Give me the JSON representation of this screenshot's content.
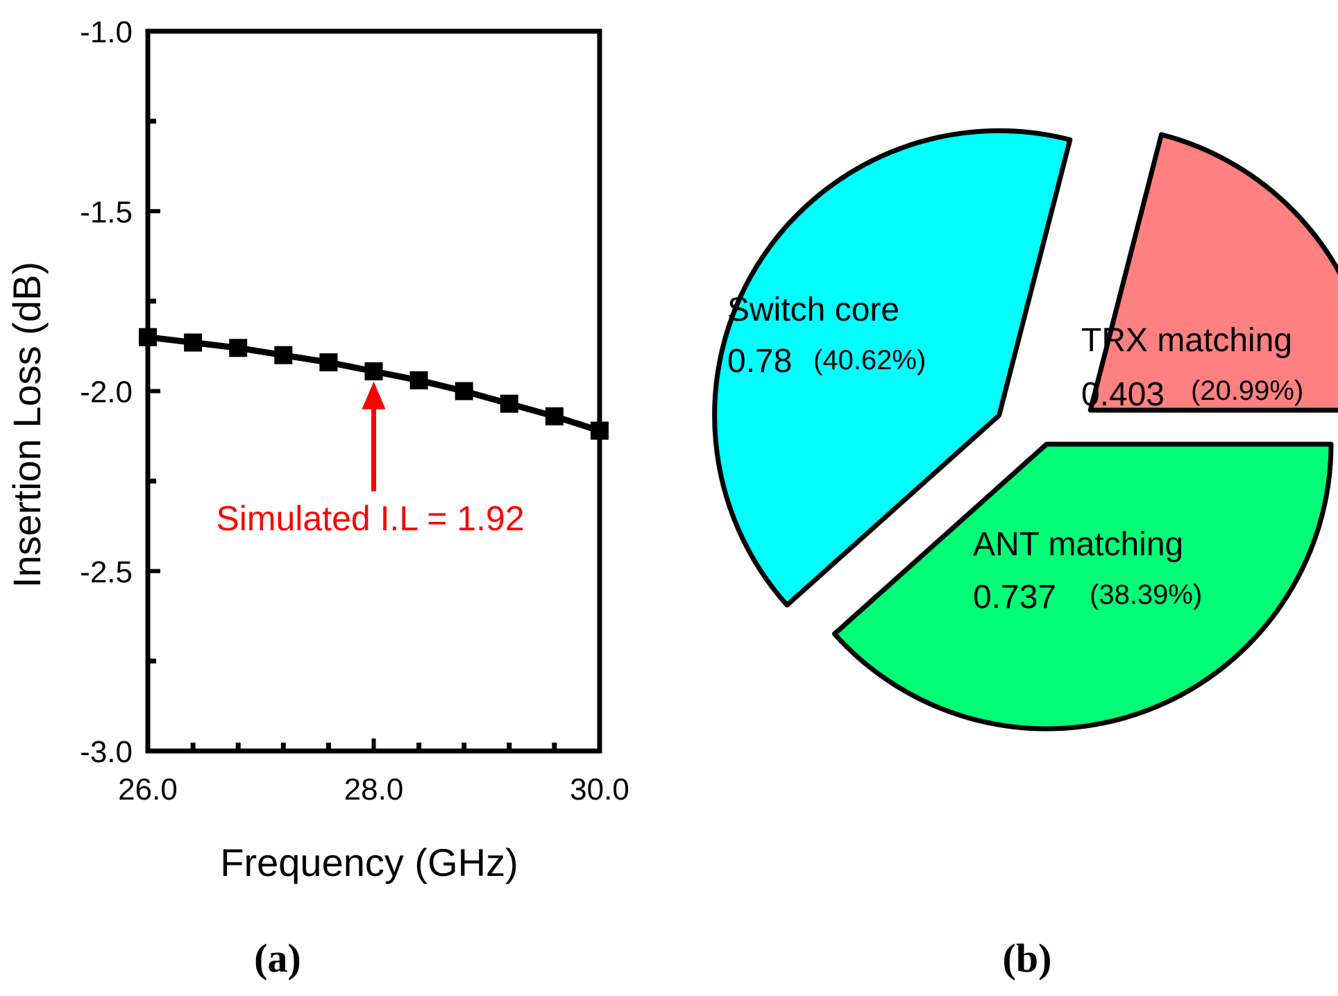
{
  "chart_data": [
    {
      "type": "line",
      "panel_label": "(a)",
      "xlabel": "Frequency (GHz)",
      "ylabel": "Insertion Loss (dB)",
      "xlim": [
        26.0,
        30.0
      ],
      "ylim": [
        -3.0,
        -1.0
      ],
      "x_ticks": [
        26.0,
        28.0,
        30.0
      ],
      "x_tick_labels": [
        "26.0",
        "28.0",
        "30.0"
      ],
      "y_ticks": [
        -1.0,
        -1.5,
        -2.0,
        -2.5,
        -3.0
      ],
      "y_tick_labels": [
        "-1.0",
        "-1.5",
        "-2.0",
        "-2.5",
        "-3.0"
      ],
      "grid": false,
      "series": [
        {
          "name": "Insertion Loss",
          "color": "#000000",
          "marker": "square",
          "x": [
            26.0,
            26.4,
            26.8,
            27.2,
            27.6,
            28.0,
            28.4,
            28.8,
            29.2,
            29.6,
            30.0
          ],
          "y": [
            -1.85,
            -1.865,
            -1.88,
            -1.9,
            -1.92,
            -1.945,
            -1.97,
            -2.0,
            -2.035,
            -2.07,
            -2.11
          ]
        }
      ],
      "annotation": {
        "text": "Simulated I.L = 1.92",
        "x": 28.0,
        "y": -1.95,
        "color": "#ff0000"
      }
    },
    {
      "type": "pie",
      "panel_label": "(b)",
      "slices": [
        {
          "label": "Switch core",
          "value": 0.78,
          "value_text": "0.78",
          "percent_text": "(40.62%)",
          "color": "#00ffff",
          "exploded": true
        },
        {
          "label": "TRX matching",
          "value": 0.403,
          "value_text": "0.403",
          "percent_text": "(20.99%)",
          "color": "#ff8080",
          "exploded": true
        },
        {
          "label": "ANT matching",
          "value": 0.737,
          "value_text": "0.737",
          "percent_text": "(38.39%)",
          "color": "#00ff77",
          "exploded": false
        }
      ]
    }
  ]
}
